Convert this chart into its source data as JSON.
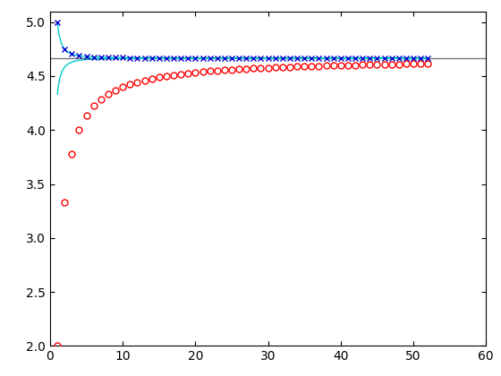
{
  "exact_value": 4.6667,
  "n_min": 1,
  "n_max": 52,
  "riemann_C": -2.6667,
  "trap_D": 0.3333,
  "xlim": [
    0,
    60
  ],
  "ylim": [
    2,
    5.1
  ],
  "yticks": [
    2,
    2.5,
    3,
    3.5,
    4,
    4.5,
    5
  ],
  "xticks": [
    0,
    10,
    20,
    30,
    40,
    50,
    60
  ],
  "riemann_color": "#ff0000",
  "trap_color": "#0000cc",
  "exact_color": "#777777",
  "envelope_color": "#00cccc",
  "background_color": "white",
  "figsize": [
    5.6,
    4.2
  ],
  "dpi": 100
}
